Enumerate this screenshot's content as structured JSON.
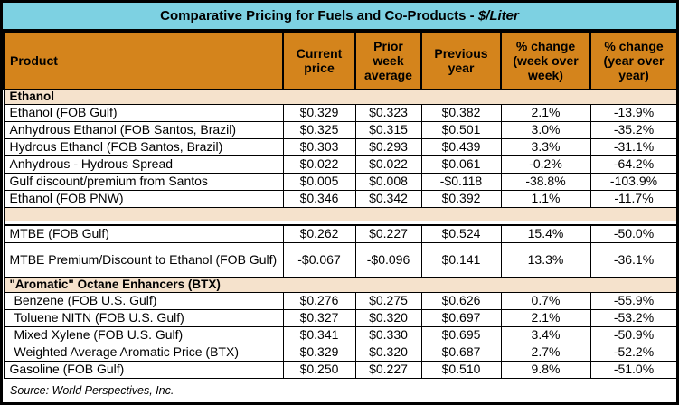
{
  "title": {
    "main": "Comparative Pricing for Fuels and Co-Products - ",
    "unit": "$/Liter"
  },
  "table": {
    "columns": [
      "Product",
      "Current price",
      "Prior week average",
      "Previous year",
      "% change (week over week)",
      "% change (year over year)"
    ],
    "rows": [
      {
        "type": "section",
        "label": "Ethanol"
      },
      {
        "type": "data",
        "product": "Ethanol (FOB Gulf)",
        "values": [
          "$0.329",
          "$0.323",
          "$0.382",
          "2.1%",
          "-13.9%"
        ]
      },
      {
        "type": "data",
        "product": "Anhydrous Ethanol (FOB Santos, Brazil)",
        "values": [
          "$0.325",
          "$0.315",
          "$0.501",
          "3.0%",
          "-35.2%"
        ]
      },
      {
        "type": "data",
        "product": "Hydrous Ethanol (FOB Santos, Brazil)",
        "values": [
          "$0.303",
          "$0.293",
          "$0.439",
          "3.3%",
          "-31.1%"
        ]
      },
      {
        "type": "data",
        "product": "Anhydrous - Hydrous Spread",
        "values": [
          "$0.022",
          "$0.022",
          "$0.061",
          "-0.2%",
          "-64.2%"
        ]
      },
      {
        "type": "data",
        "product": "Gulf discount/premium from Santos",
        "values": [
          "$0.005",
          "$0.008",
          "-$0.118",
          "-38.8%",
          "-103.9%"
        ]
      },
      {
        "type": "data",
        "product": "Ethanol (FOB PNW)",
        "values": [
          "$0.346",
          "$0.342",
          "$0.392",
          "1.1%",
          "-11.7%"
        ]
      },
      {
        "type": "spacer",
        "style": "peach"
      },
      {
        "type": "spacer",
        "style": "white"
      },
      {
        "type": "data",
        "product": "MTBE (FOB Gulf)",
        "values": [
          "$0.262",
          "$0.227",
          "$0.524",
          "15.4%",
          "-50.0%"
        ]
      },
      {
        "type": "data",
        "product": "MTBE Premium/Discount to Ethanol (FOB Gulf)",
        "tall": true,
        "values": [
          "-$0.067",
          "-$0.096",
          "$0.141",
          "13.3%",
          "-36.1%"
        ]
      },
      {
        "type": "section",
        "label": "\"Aromatic\" Octane Enhancers (BTX)"
      },
      {
        "type": "data",
        "product": "Benzene (FOB U.S. Gulf)",
        "indent": true,
        "values": [
          "$0.276",
          "$0.275",
          "$0.626",
          "0.7%",
          "-55.9%"
        ]
      },
      {
        "type": "data",
        "product": "Toluene NITN (FOB U.S. Gulf)",
        "indent": true,
        "values": [
          "$0.327",
          "$0.320",
          "$0.697",
          "2.1%",
          "-53.2%"
        ]
      },
      {
        "type": "data",
        "product": "Mixed Xylene (FOB U.S. Gulf)",
        "indent": true,
        "values": [
          "$0.341",
          "$0.330",
          "$0.695",
          "3.4%",
          "-50.9%"
        ]
      },
      {
        "type": "data",
        "product": "Weighted Average Aromatic Price (BTX)",
        "indent": true,
        "values": [
          "$0.329",
          "$0.320",
          "$0.687",
          "2.7%",
          "-52.2%"
        ]
      },
      {
        "type": "data",
        "product": "Gasoline (FOB Gulf)",
        "values": [
          "$0.250",
          "$0.227",
          "$0.510",
          "9.8%",
          "-51.0%"
        ]
      }
    ]
  },
  "source": "Source: World Perspectives, Inc.",
  "colors": {
    "title_bg": "#7DD1E2",
    "header_bg": "#D4841C",
    "section_bg": "#F5E2CC",
    "border": "#000000",
    "text": "#000000",
    "row_bg": "#FFFFFF"
  }
}
